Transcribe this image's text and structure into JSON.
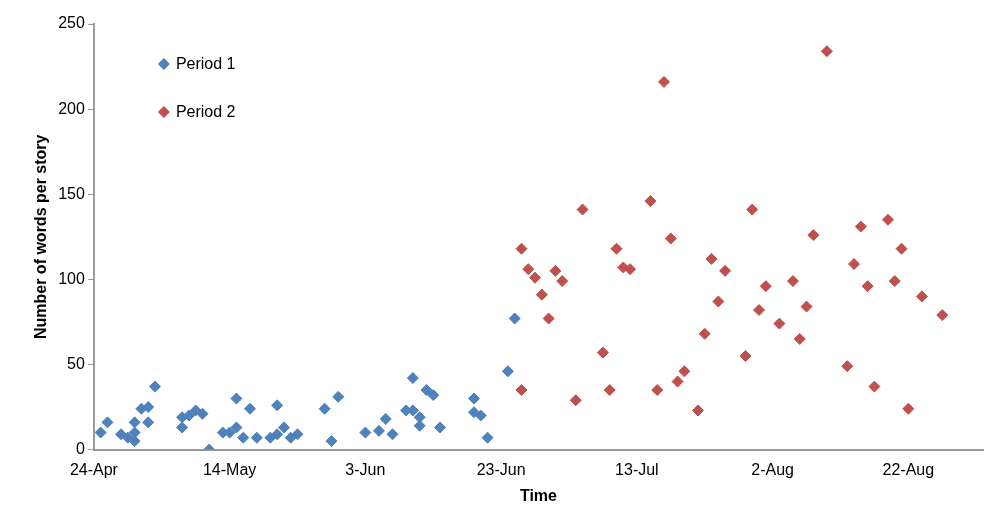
{
  "chart_data": {
    "type": "scatter",
    "xlabel": "Time",
    "ylabel": "Number of words per story",
    "xlim": [
      "--04-24",
      "--09-02"
    ],
    "xticks": [
      {
        "value": "--04-24",
        "label": "24-Apr"
      },
      {
        "value": "--05-14",
        "label": "14-May"
      },
      {
        "value": "--06-03",
        "label": "3-Jun"
      },
      {
        "value": "--06-23",
        "label": "23-Jun"
      },
      {
        "value": "--07-13",
        "label": "13-Jul"
      },
      {
        "value": "--08-02",
        "label": "2-Aug"
      },
      {
        "value": "--08-22",
        "label": "22-Aug"
      }
    ],
    "ylim": [
      0,
      250
    ],
    "yticks": [
      0,
      50,
      100,
      150,
      200,
      250
    ],
    "grid": false,
    "legend": "top left",
    "marker": "diamond",
    "series": [
      {
        "name": "Period 1",
        "color": "#4f81bd",
        "x": [
          "--04-25",
          "--04-26",
          "--04-28",
          "--04-29",
          "--04-30",
          "--04-30",
          "--04-30",
          "--05-01",
          "--05-02",
          "--05-02",
          "--05-03",
          "--05-07",
          "--05-07",
          "--05-08",
          "--05-09",
          "--05-10",
          "--05-11",
          "--05-13",
          "--05-14",
          "--05-15",
          "--05-15",
          "--05-16",
          "--05-17",
          "--05-18",
          "--05-20",
          "--05-21",
          "--05-21",
          "--05-22",
          "--05-23",
          "--05-24",
          "--05-28",
          "--05-29",
          "--05-30",
          "--06-03",
          "--06-05",
          "--06-06",
          "--06-07",
          "--06-09",
          "--06-10",
          "--06-10",
          "--06-11",
          "--06-11",
          "--06-12",
          "--06-13",
          "--06-14",
          "--06-19",
          "--06-19",
          "--06-20",
          "--06-21",
          "--06-24",
          "--06-25"
        ],
        "values": [
          10,
          16,
          9,
          7,
          5,
          10,
          16,
          24,
          16,
          25,
          37,
          13,
          19,
          20,
          23,
          21,
          0,
          10,
          10,
          13,
          30,
          7,
          24,
          7,
          7,
          9,
          26,
          13,
          7,
          9,
          24,
          5,
          31,
          10,
          11,
          18,
          9,
          23,
          42,
          23,
          14,
          19,
          35,
          32,
          13,
          30,
          22,
          20,
          7,
          46,
          77
        ]
      },
      {
        "name": "Period 2",
        "color": "#c0504d",
        "x": [
          "--06-26",
          "--06-26",
          "--06-27",
          "--06-28",
          "--06-29",
          "--06-30",
          "--07-01",
          "--07-02",
          "--07-04",
          "--07-05",
          "--07-08",
          "--07-09",
          "--07-10",
          "--07-11",
          "--07-12",
          "--07-15",
          "--07-16",
          "--07-17",
          "--07-18",
          "--07-19",
          "--07-20",
          "--07-22",
          "--07-23",
          "--07-24",
          "--07-25",
          "--07-26",
          "--07-29",
          "--07-30",
          "--07-31",
          "--08-01",
          "--08-03",
          "--08-05",
          "--08-06",
          "--08-07",
          "--08-08",
          "--08-10",
          "--08-13",
          "--08-14",
          "--08-15",
          "--08-16",
          "--08-17",
          "--08-19",
          "--08-20",
          "--08-21",
          "--08-22",
          "--08-24",
          "--08-27"
        ],
        "values": [
          118,
          35,
          106,
          101,
          91,
          77,
          105,
          99,
          29,
          141,
          57,
          35,
          118,
          107,
          106,
          146,
          35,
          216,
          124,
          40,
          46,
          23,
          68,
          112,
          87,
          105,
          55,
          141,
          82,
          96,
          74,
          99,
          65,
          84,
          126,
          234,
          49,
          109,
          131,
          96,
          37,
          135,
          99,
          118,
          24,
          90,
          79
        ]
      }
    ]
  }
}
